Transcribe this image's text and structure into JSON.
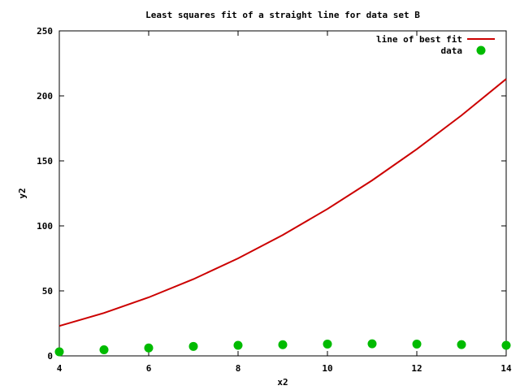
{
  "chart_data": {
    "type": "line",
    "title": "Least squares fit of a straight line for data set B",
    "xlabel": "x2",
    "ylabel": "y2",
    "xlim": [
      4,
      14
    ],
    "ylim": [
      0,
      250
    ],
    "xticks": [
      4,
      6,
      8,
      10,
      12,
      14
    ],
    "yticks": [
      0,
      50,
      100,
      150,
      200,
      250
    ],
    "grid": false,
    "legend_position": "top-right",
    "series": [
      {
        "name": "line of best fit",
        "kind": "line",
        "color": "#cc0000",
        "x": [
          4,
          5,
          6,
          7,
          8,
          9,
          10,
          11,
          12,
          13,
          14
        ],
        "y": [
          23,
          33,
          45,
          59,
          75,
          93,
          113,
          135,
          159,
          185,
          213
        ]
      },
      {
        "name": "data",
        "kind": "points",
        "color": "#00bb00",
        "x": [
          4,
          5,
          6,
          7,
          8,
          9,
          10,
          11,
          12,
          13,
          14
        ],
        "y": [
          3.1,
          4.7,
          6.1,
          7.3,
          8.1,
          8.6,
          9.1,
          9.3,
          9.1,
          8.7,
          8.1
        ]
      }
    ]
  }
}
